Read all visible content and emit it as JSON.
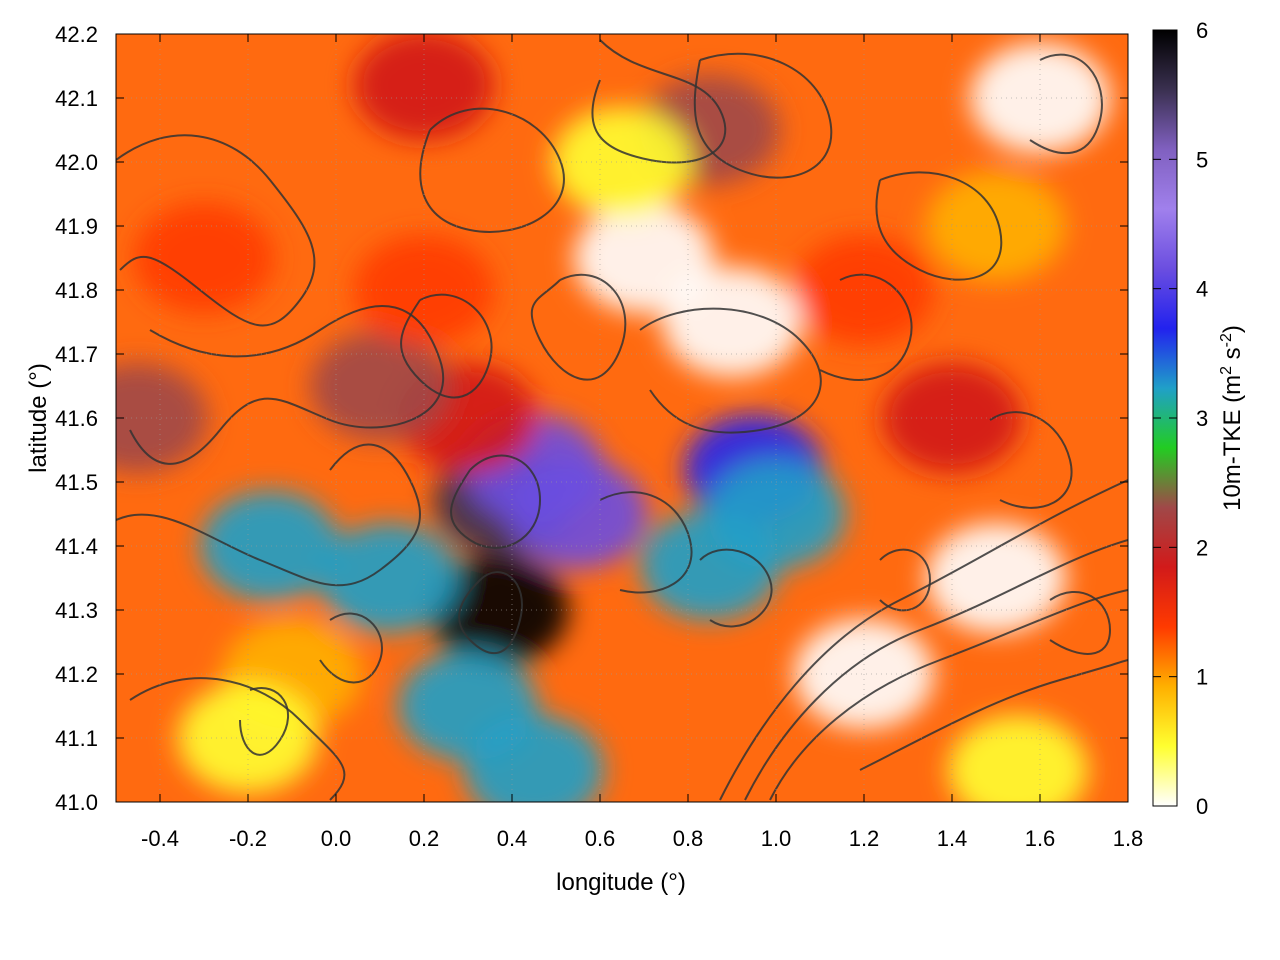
{
  "chart_data": {
    "type": "heatmap",
    "title": "",
    "xlabel": "longitude (°)",
    "ylabel": "latitude (°)",
    "xlim": [
      -0.5,
      1.8
    ],
    "ylim": [
      41.0,
      42.2
    ],
    "x_ticks": [
      "-0.4",
      "-0.2",
      "0.0",
      "0.2",
      "0.4",
      "0.6",
      "0.8",
      "1.0",
      "1.2",
      "1.4",
      "1.6",
      "1.8"
    ],
    "y_ticks": [
      "41.0",
      "41.1",
      "41.2",
      "41.3",
      "41.4",
      "41.5",
      "41.6",
      "41.7",
      "41.8",
      "41.9",
      "42.0",
      "42.1",
      "42.2"
    ],
    "colorbar": {
      "label": "10m-TKE (m² s⁻²)",
      "label_main": "10m-TKE (m",
      "label_sup1": "2",
      "label_mid": " s",
      "label_sup2": "-2",
      "label_end": ")",
      "range": [
        0,
        6
      ],
      "ticks": [
        "0",
        "1",
        "2",
        "3",
        "4",
        "5",
        "6"
      ],
      "palette": [
        "#ffffff",
        "#ffff30",
        "#ffb000",
        "#ff3a00",
        "#d21a1a",
        "#a04848",
        "#22cc22",
        "#20a0c8",
        "#2222ee",
        "#6b4ee0",
        "#a080ec",
        "#8060c0",
        "#3a3050",
        "#000000"
      ]
    },
    "grid": true,
    "overlay": "terrain elevation contours",
    "regions": [
      {
        "lon": 0.38,
        "lat": 41.47,
        "tke": 5.6
      },
      {
        "lon": 0.37,
        "lat": 41.3,
        "tke": 6.0
      },
      {
        "lon": 0.45,
        "lat": 41.52,
        "tke": 4.3
      },
      {
        "lon": 0.55,
        "lat": 41.45,
        "tke": 4.0
      },
      {
        "lon": 0.95,
        "lat": 41.52,
        "tke": 3.6
      },
      {
        "lon": 1.0,
        "lat": 41.45,
        "tke": 3.2
      },
      {
        "lon": -0.15,
        "lat": 41.4,
        "tke": 3.1
      },
      {
        "lon": 0.12,
        "lat": 41.35,
        "tke": 3.4
      },
      {
        "lon": 0.3,
        "lat": 41.15,
        "tke": 3.0
      },
      {
        "lon": 0.45,
        "lat": 41.05,
        "tke": 3.3
      },
      {
        "lon": 0.85,
        "lat": 41.37,
        "tke": 3.3
      },
      {
        "lon": -0.45,
        "lat": 41.6,
        "tke": 2.1
      },
      {
        "lon": 0.3,
        "lat": 41.6,
        "tke": 2.0
      },
      {
        "lon": 0.1,
        "lat": 41.65,
        "tke": 2.1
      },
      {
        "lon": 0.2,
        "lat": 42.12,
        "tke": 2.0
      },
      {
        "lon": 0.85,
        "lat": 42.05,
        "tke": 2.2
      },
      {
        "lon": 1.4,
        "lat": 41.6,
        "tke": 1.9
      },
      {
        "lon": -0.3,
        "lat": 41.85,
        "tke": 1.3
      },
      {
        "lon": 0.2,
        "lat": 41.8,
        "tke": 1.2
      },
      {
        "lon": 1.2,
        "lat": 41.8,
        "tke": 1.3
      },
      {
        "lon": 1.5,
        "lat": 41.9,
        "tke": 1.0
      },
      {
        "lon": -0.1,
        "lat": 41.2,
        "tke": 1.1
      },
      {
        "lon": 0.7,
        "lat": 41.85,
        "tke": 0.2
      },
      {
        "lon": 0.9,
        "lat": 41.75,
        "tke": 0.2
      },
      {
        "lon": 0.65,
        "lat": 42.0,
        "tke": 0.4
      },
      {
        "lon": 1.6,
        "lat": 42.1,
        "tke": 0.1
      },
      {
        "lon": 1.5,
        "lat": 41.35,
        "tke": 0.2
      },
      {
        "lon": 1.2,
        "lat": 41.2,
        "tke": 0.2
      },
      {
        "lon": 1.55,
        "lat": 41.05,
        "tke": 0.3
      },
      {
        "lon": -0.2,
        "lat": 41.1,
        "tke": 0.3
      }
    ]
  }
}
